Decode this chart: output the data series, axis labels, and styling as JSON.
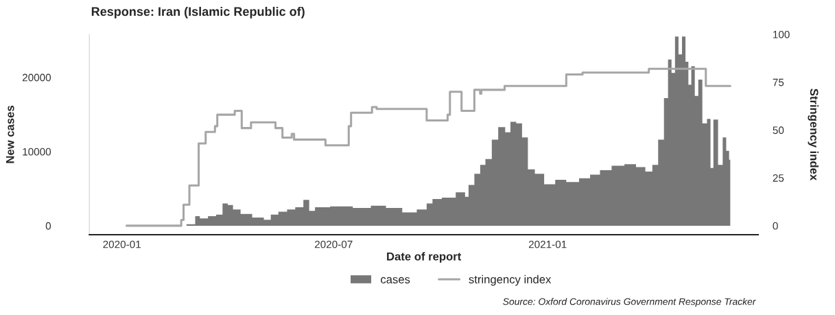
{
  "chart_data": {
    "type": "area",
    "title": "Response: Iran (Islamic Republic of)",
    "xlabel": "Date of report",
    "ylabel": "New cases",
    "y2label": "Stringency index",
    "annotations": [
      "Source: Oxford Coronavirus Government Response Tracker"
    ],
    "xlim": [
      "2019-12-04",
      "2021-07-01"
    ],
    "xticks": [
      "2020-01",
      "2020-07",
      "2021-01"
    ],
    "ylim": [
      -1200,
      25800
    ],
    "yticks": [
      0,
      10000,
      20000
    ],
    "y2lim": [
      -4.7,
      100
    ],
    "y2ticks": [
      0,
      25,
      50,
      75,
      100
    ],
    "grid": false,
    "legend": "bottom",
    "series": [
      {
        "name": "cases",
        "color": "#777777",
        "x": [
          "2020-02-19",
          "2020-03-03",
          "2020-03-05",
          "2020-03-11",
          "2020-03-19",
          "2020-03-25",
          "2020-03-30",
          "2020-04-03",
          "2020-04-08",
          "2020-04-16",
          "2020-04-28",
          "2020-05-06",
          "2020-05-10",
          "2020-05-19",
          "2020-05-25",
          "2020-06-02",
          "2020-06-08",
          "2020-06-12",
          "2020-06-18",
          "2020-07-08",
          "2020-07-27",
          "2020-08-08",
          "2020-08-22",
          "2020-09-05",
          "2020-09-16",
          "2020-09-22",
          "2020-09-26",
          "2020-10-08",
          "2020-10-20",
          "2020-10-24",
          "2020-10-26",
          "2020-11-03",
          "2020-11-05",
          "2020-11-12",
          "2020-11-16",
          "2020-11-23",
          "2020-11-28",
          "2020-12-02",
          "2020-12-08",
          "2020-12-12",
          "2020-12-18",
          "2020-12-24",
          "2021-01-03",
          "2021-01-12",
          "2021-01-22",
          "2021-02-03",
          "2021-02-10",
          "2021-02-20",
          "2021-03-02",
          "2021-03-14",
          "2021-03-22",
          "2021-03-30",
          "2021-04-03",
          "2021-04-09",
          "2021-04-13",
          "2021-04-16",
          "2021-04-19",
          "2021-04-22",
          "2021-04-25",
          "2021-04-28",
          "2021-05-01",
          "2021-05-03",
          "2021-05-06",
          "2021-05-09",
          "2021-05-12",
          "2021-05-16",
          "2021-05-20",
          "2021-05-22",
          "2021-05-25",
          "2021-05-30",
          "2021-06-02",
          "2021-06-05",
          "2021-06-07"
        ],
        "values": [
          0,
          200,
          1300,
          1000,
          1300,
          1500,
          3000,
          2800,
          2200,
          1600,
          1100,
          800,
          1500,
          1900,
          2200,
          2500,
          3500,
          2000,
          2500,
          2600,
          2400,
          2700,
          2400,
          1800,
          2200,
          3000,
          3600,
          3800,
          4500,
          3900,
          5500,
          7000,
          8200,
          9000,
          11600,
          13300,
          12600,
          14000,
          13800,
          11900,
          7600,
          7000,
          5600,
          6200,
          5900,
          6400,
          6900,
          7500,
          8100,
          8300,
          7900,
          7300,
          8200,
          11600,
          17200,
          22400,
          20600,
          25500,
          23100,
          25500,
          22100,
          19000,
          21500,
          17500,
          19700,
          13800,
          14400,
          7800,
          14300,
          8200,
          11900,
          10100,
          8900
        ]
      },
      {
        "name": "stringency index",
        "type": "step",
        "axis": "y2",
        "color": "#a6a6a6",
        "x": [
          "2020-01-05",
          "2020-02-21",
          "2020-02-23",
          "2020-02-28",
          "2020-03-07",
          "2020-03-13",
          "2020-03-21",
          "2020-03-23",
          "2020-04-07",
          "2020-04-13",
          "2020-04-21",
          "2020-05-12",
          "2020-05-18",
          "2020-05-26",
          "2020-05-28",
          "2020-06-24",
          "2020-07-14",
          "2020-07-16",
          "2020-08-03",
          "2020-08-07",
          "2020-09-19",
          "2020-10-07",
          "2020-10-09",
          "2020-10-19",
          "2020-10-30",
          "2020-11-04",
          "2020-11-05",
          "2020-11-25",
          "2021-01-17",
          "2021-01-31",
          "2021-03-29",
          "2021-05-17",
          "2021-06-07"
        ],
        "values": [
          0,
          3,
          11,
          21,
          43,
          49,
          52,
          58,
          60,
          51,
          54,
          51,
          46,
          48,
          45,
          42,
          52,
          59,
          62,
          61,
          55,
          58,
          70,
          60,
          71,
          69,
          71,
          73,
          79,
          80,
          82,
          73,
          73
        ]
      }
    ]
  }
}
